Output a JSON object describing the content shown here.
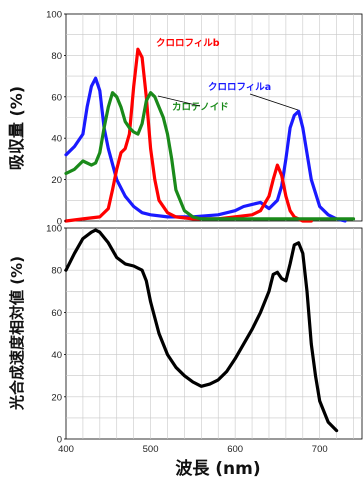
{
  "chart_data": [
    {
      "type": "line",
      "ylabel": "吸収量 (%)",
      "ylim": [
        0,
        100
      ],
      "xlim": [
        400,
        750
      ],
      "yticks": [
        0,
        20,
        40,
        60,
        80,
        100
      ],
      "grid": true,
      "series": [
        {
          "name": "クロロフィルa",
          "color": "#1a1aff",
          "x": [
            400,
            410,
            420,
            425,
            430,
            435,
            440,
            445,
            450,
            460,
            470,
            480,
            490,
            500,
            520,
            550,
            580,
            600,
            610,
            620,
            630,
            640,
            650,
            655,
            660,
            665,
            670,
            675,
            680,
            690,
            700,
            710,
            720,
            730
          ],
          "y": [
            32,
            36,
            42,
            55,
            65,
            69,
            63,
            45,
            35,
            20,
            12,
            7,
            4,
            3,
            2,
            2,
            3,
            5,
            7,
            8,
            9,
            6,
            10,
            17,
            30,
            45,
            51,
            53,
            45,
            20,
            7,
            3,
            1,
            0
          ]
        },
        {
          "name": "クロロフィルb",
          "color": "#ff0000",
          "x": [
            400,
            420,
            440,
            450,
            455,
            460,
            465,
            470,
            475,
            480,
            485,
            490,
            495,
            500,
            505,
            510,
            520,
            530,
            550,
            580,
            600,
            620,
            630,
            640,
            645,
            650,
            655,
            660,
            665,
            670,
            680,
            690
          ],
          "y": [
            0,
            1,
            2,
            6,
            15,
            25,
            33,
            35,
            42,
            65,
            83,
            79,
            60,
            35,
            20,
            10,
            4,
            2,
            1,
            1,
            2,
            3,
            5,
            12,
            20,
            27,
            22,
            12,
            5,
            2,
            0,
            0
          ]
        },
        {
          "name": "カロテノイド",
          "color": "#1a8a1a",
          "x": [
            400,
            410,
            415,
            420,
            425,
            430,
            435,
            440,
            445,
            450,
            455,
            460,
            465,
            470,
            475,
            480,
            485,
            490,
            495,
            500,
            505,
            510,
            515,
            520,
            525,
            530,
            540,
            550,
            560,
            600,
            700,
            740
          ],
          "y": [
            23,
            25,
            27,
            29,
            28,
            27,
            28,
            33,
            45,
            55,
            62,
            60,
            55,
            48,
            45,
            43,
            42,
            47,
            58,
            62,
            60,
            55,
            50,
            42,
            30,
            15,
            5,
            2,
            1,
            1,
            1,
            1
          ]
        }
      ]
    },
    {
      "type": "line",
      "xlabel": "波長 (nm)",
      "ylabel": "光合成速度相対値 (%)",
      "xlim": [
        400,
        750
      ],
      "ylim": [
        0,
        100
      ],
      "xticks": [
        400,
        500,
        600,
        700
      ],
      "yticks": [
        0,
        20,
        40,
        60,
        80,
        100
      ],
      "grid": true,
      "series": [
        {
          "color": "#000000",
          "x": [
            400,
            410,
            420,
            430,
            435,
            440,
            450,
            460,
            470,
            480,
            490,
            495,
            500,
            510,
            520,
            530,
            540,
            550,
            560,
            570,
            580,
            590,
            600,
            610,
            620,
            630,
            640,
            645,
            650,
            655,
            660,
            665,
            670,
            675,
            680,
            685,
            690,
            695,
            700,
            710,
            720
          ],
          "y": [
            80,
            88,
            95,
            98,
            99,
            98,
            93,
            86,
            83,
            82,
            80,
            75,
            65,
            50,
            40,
            34,
            30,
            27,
            25,
            26,
            28,
            32,
            38,
            45,
            52,
            60,
            70,
            78,
            79,
            76,
            75,
            83,
            92,
            93,
            88,
            70,
            45,
            30,
            18,
            8,
            4
          ]
        }
      ]
    }
  ]
}
